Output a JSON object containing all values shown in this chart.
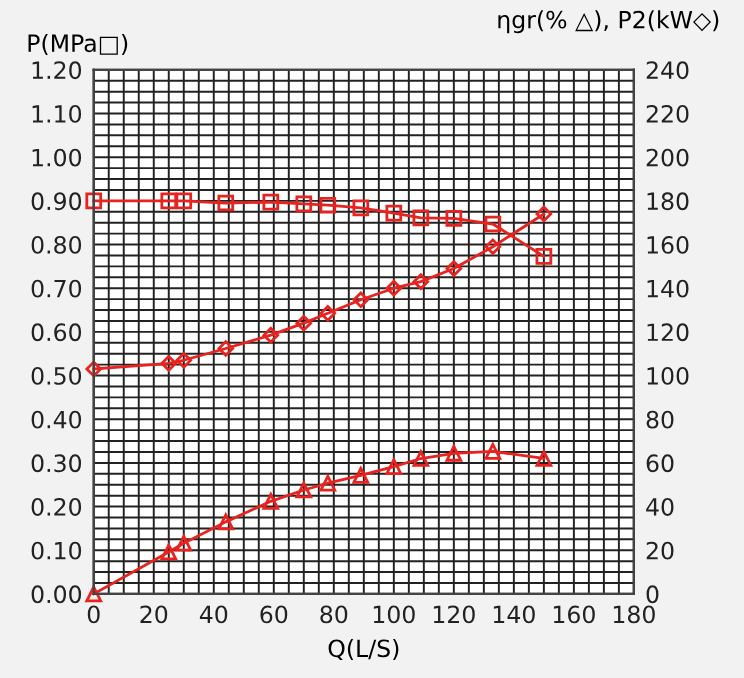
{
  "chart_data": {
    "type": "line",
    "xlabel": "Q(L/S)",
    "ylabel": "P(MPa□)",
    "y2label": "ηgr(% △), P2(kW◇)",
    "xlim": [
      0,
      180
    ],
    "xticks": [
      0,
      20,
      40,
      60,
      80,
      100,
      120,
      140,
      160,
      180
    ],
    "ylim": [
      0,
      1.2
    ],
    "yticks": [
      {
        "value": 0,
        "label": "0.00"
      },
      {
        "value": 0.1,
        "label": "0.10"
      },
      {
        "value": 0.2,
        "label": "0.20"
      },
      {
        "value": 0.3,
        "label": "0.30"
      },
      {
        "value": 0.4,
        "label": "0.40"
      },
      {
        "value": 0.5,
        "label": "0.50"
      },
      {
        "value": 0.6,
        "label": "0.60"
      },
      {
        "value": 0.7,
        "label": "0.70"
      },
      {
        "value": 0.8,
        "label": "0.80"
      },
      {
        "value": 0.9,
        "label": "0.90"
      },
      {
        "value": 1.0,
        "label": "1.00"
      },
      {
        "value": 1.1,
        "label": "1.10"
      },
      {
        "value": 1.2,
        "label": "1.20"
      }
    ],
    "y2lim": [
      0,
      240
    ],
    "y2ticks": [
      0,
      20,
      40,
      60,
      80,
      100,
      120,
      140,
      160,
      180,
      200,
      220,
      240
    ],
    "grid": true,
    "line_style": "solid",
    "series": [
      {
        "color": "#e8231f",
        "marker": "square",
        "x": [
          0,
          25,
          30,
          44,
          59,
          70,
          78,
          89,
          100,
          109,
          120,
          133,
          150
        ],
        "values": [
          0.9,
          0.9,
          0.9,
          0.895,
          0.897,
          0.893,
          0.89,
          0.884,
          0.872,
          0.861,
          0.86,
          0.847,
          0.773
        ]
      },
      {
        "color": "#e8231f",
        "marker": "diamond",
        "axis": "y2",
        "x": [
          0,
          25,
          30,
          44,
          59,
          70,
          78,
          89,
          100,
          109,
          120,
          133,
          150
        ],
        "values": [
          103,
          105.6,
          107,
          112.4,
          118.5,
          124,
          128.5,
          134.7,
          140,
          143,
          149,
          159,
          174
        ]
      },
      {
        "color": "#e8231f",
        "marker": "triangle",
        "axis": "y2",
        "x": [
          0,
          25,
          30,
          44,
          59,
          70,
          78,
          89,
          100,
          109,
          120,
          133,
          150
        ],
        "values": [
          0,
          19.2,
          23.2,
          33,
          42.4,
          47.6,
          50.7,
          54.3,
          58.3,
          62,
          64.4,
          65.3,
          62
        ]
      }
    ]
  }
}
